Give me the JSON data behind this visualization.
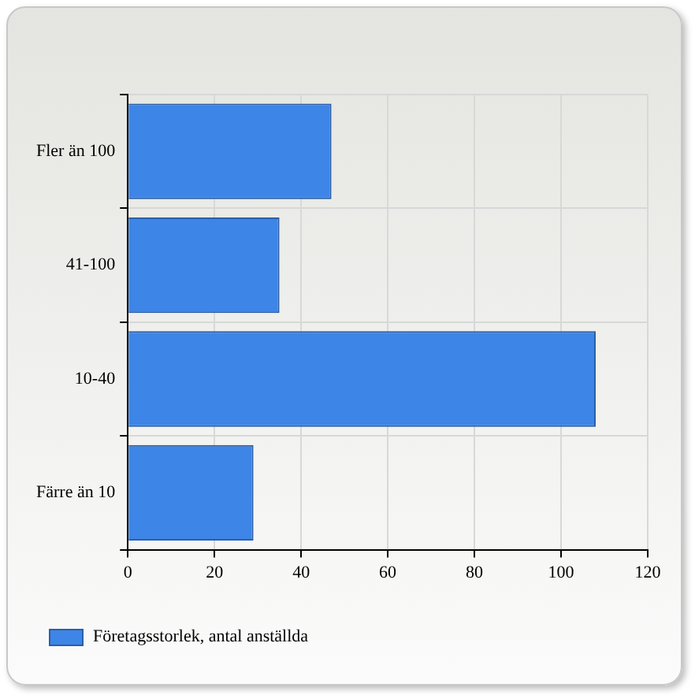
{
  "chart_data": {
    "type": "bar",
    "orientation": "horizontal",
    "categories": [
      "Fler än 100",
      "41-100",
      "10-40",
      "Färre än 10"
    ],
    "series": [
      {
        "name": "Företagsstorlek, antal anställda",
        "color": "#3d85e6",
        "values": [
          47,
          35,
          108,
          29
        ]
      }
    ],
    "xlim": [
      0,
      120
    ],
    "xticks": [
      0,
      20,
      40,
      60,
      80,
      100,
      120
    ],
    "grid": true,
    "legend": "bottom left"
  }
}
